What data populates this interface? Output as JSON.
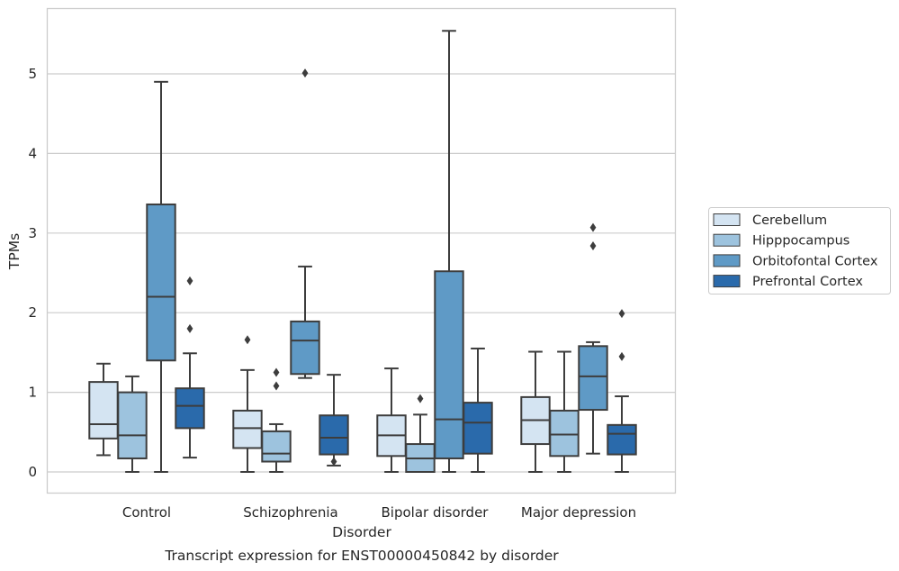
{
  "chart_data": {
    "type": "box",
    "xlabel": "Disorder",
    "ylabel": "TPMs",
    "caption": "Transcript expression for ENST00000450842 by disorder",
    "ylim": [
      -0.27,
      5.83
    ],
    "yticks": [
      0,
      1,
      2,
      3,
      4,
      5
    ],
    "grid": "horizontal",
    "legend_position": "right",
    "categories": [
      "Control",
      "Schizophrenia",
      "Bipolar disorder",
      "Major depression"
    ],
    "series": [
      {
        "name": "Cerebellum",
        "color": "#d4e4f2",
        "boxes": [
          {
            "whisker_low": 0.21,
            "q1": 0.42,
            "median": 0.6,
            "q3": 1.13,
            "whisker_high": 1.36,
            "outliers": []
          },
          {
            "whisker_low": 0.0,
            "q1": 0.3,
            "median": 0.55,
            "q3": 0.77,
            "whisker_high": 1.28,
            "outliers": [
              1.66
            ]
          },
          {
            "whisker_low": 0.0,
            "q1": 0.2,
            "median": 0.46,
            "q3": 0.71,
            "whisker_high": 1.3,
            "outliers": []
          },
          {
            "whisker_low": 0.0,
            "q1": 0.35,
            "median": 0.65,
            "q3": 0.94,
            "whisker_high": 1.51,
            "outliers": []
          }
        ]
      },
      {
        "name": "Hipppocampus",
        "color": "#9dc3de",
        "boxes": [
          {
            "whisker_low": 0.0,
            "q1": 0.17,
            "median": 0.46,
            "q3": 1.0,
            "whisker_high": 1.2,
            "outliers": []
          },
          {
            "whisker_low": 0.0,
            "q1": 0.13,
            "median": 0.23,
            "q3": 0.51,
            "whisker_high": 0.6,
            "outliers": [
              1.08,
              1.25
            ]
          },
          {
            "whisker_low": 0.0,
            "q1": 0.0,
            "median": 0.17,
            "q3": 0.35,
            "whisker_high": 0.72,
            "outliers": [
              0.92
            ]
          },
          {
            "whisker_low": 0.0,
            "q1": 0.2,
            "median": 0.47,
            "q3": 0.77,
            "whisker_high": 1.51,
            "outliers": []
          }
        ]
      },
      {
        "name": "Orbitofontal Cortex",
        "color": "#5f9ac6",
        "boxes": [
          {
            "whisker_low": 0.0,
            "q1": 1.4,
            "median": 2.2,
            "q3": 3.36,
            "whisker_high": 4.9,
            "outliers": []
          },
          {
            "whisker_low": 1.18,
            "q1": 1.23,
            "median": 1.65,
            "q3": 1.89,
            "whisker_high": 2.58,
            "outliers": [
              5.01
            ]
          },
          {
            "whisker_low": 0.0,
            "q1": 0.17,
            "median": 0.66,
            "q3": 2.52,
            "whisker_high": 5.54,
            "outliers": []
          },
          {
            "whisker_low": 0.23,
            "q1": 0.78,
            "median": 1.2,
            "q3": 1.58,
            "whisker_high": 1.63,
            "outliers": [
              2.84,
              3.07
            ]
          }
        ]
      },
      {
        "name": "Prefrontal Cortex",
        "color": "#2a6aab",
        "boxes": [
          {
            "whisker_low": 0.18,
            "q1": 0.55,
            "median": 0.83,
            "q3": 1.05,
            "whisker_high": 1.49,
            "outliers": [
              1.8,
              2.4
            ]
          },
          {
            "whisker_low": 0.08,
            "q1": 0.22,
            "median": 0.43,
            "q3": 0.71,
            "whisker_high": 1.22,
            "outliers": [
              0.13
            ]
          },
          {
            "whisker_low": 0.0,
            "q1": 0.23,
            "median": 0.62,
            "q3": 0.87,
            "whisker_high": 1.55,
            "outliers": []
          },
          {
            "whisker_low": 0.0,
            "q1": 0.22,
            "median": 0.48,
            "q3": 0.59,
            "whisker_high": 0.95,
            "outliers": [
              1.45,
              1.99
            ]
          }
        ]
      }
    ]
  }
}
